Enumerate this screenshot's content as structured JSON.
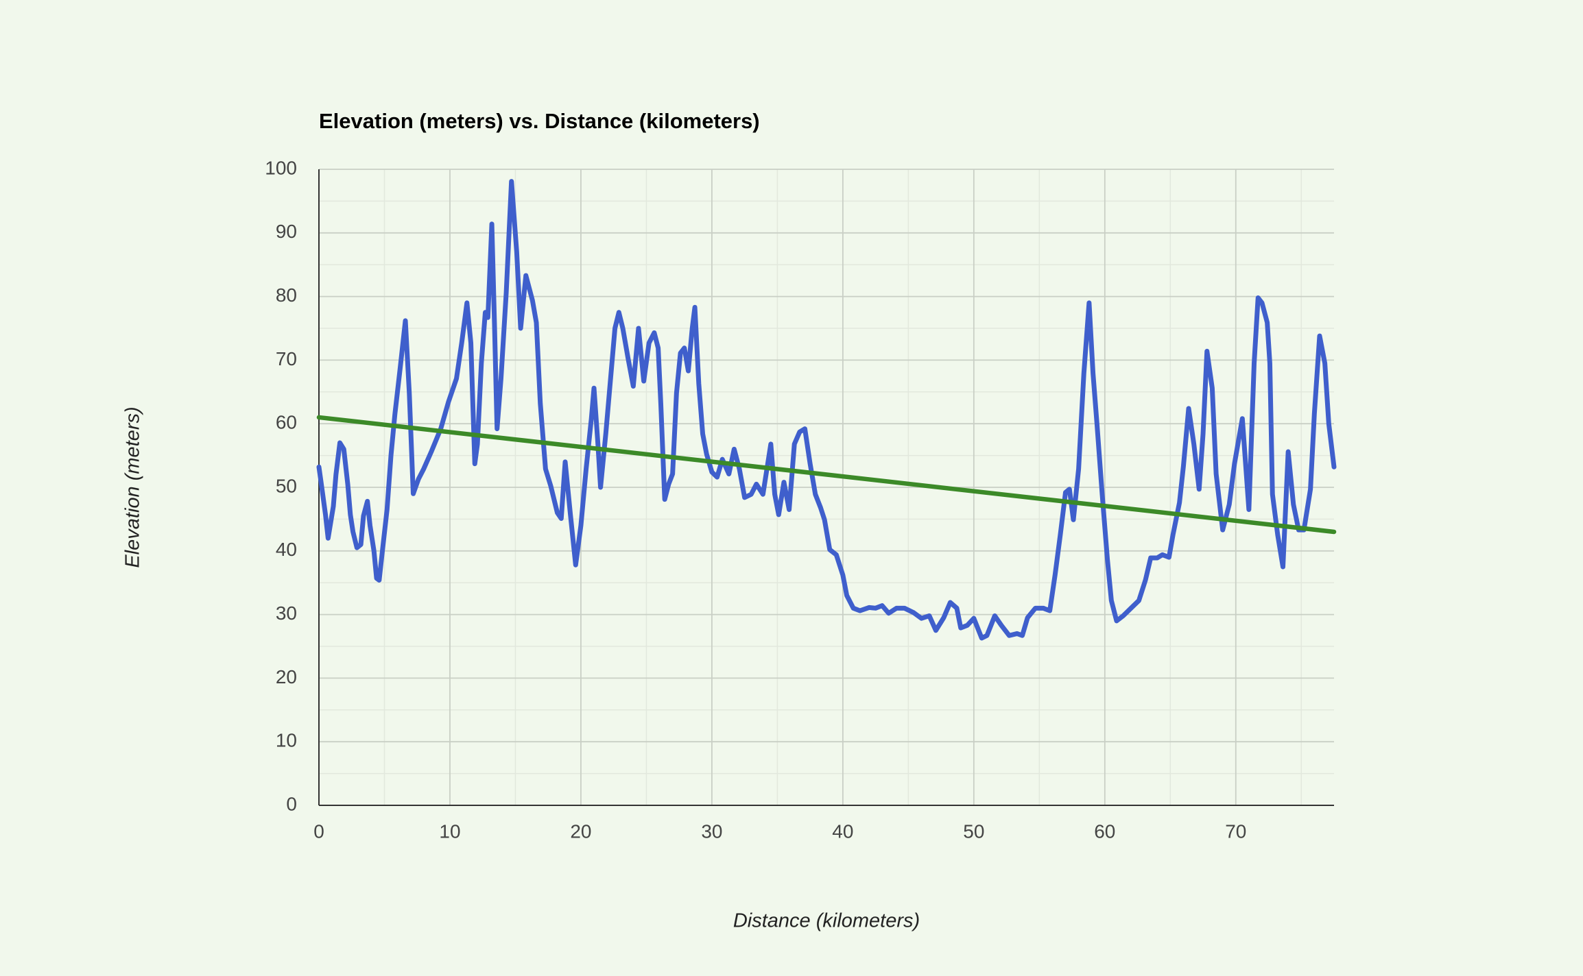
{
  "chart_data": {
    "type": "line",
    "title": "Elevation (meters) vs. Distance (kilometers)",
    "x_label": "Distance (kilometers)",
    "y_label": "Elevation (meters)",
    "xlim": [
      0,
      77.5
    ],
    "ylim": [
      0,
      100
    ],
    "xticks": [
      0,
      10,
      20,
      30,
      40,
      50,
      60,
      70
    ],
    "yticks": [
      0,
      10,
      20,
      30,
      40,
      50,
      60,
      70,
      80,
      90,
      100
    ],
    "grid": true,
    "minor_grid": true,
    "series": [
      {
        "color": "#3f5fcc",
        "x": [
          0,
          0.15,
          0.5,
          0.7,
          1.1,
          1.3,
          1.6,
          1.9,
          2.2,
          2.4,
          2.6,
          2.9,
          3.2,
          3.4,
          3.7,
          3.9,
          4.2,
          4.4,
          4.6,
          4.9,
          5.2,
          5.5,
          5.8,
          6.2,
          6.6,
          6.9,
          7.2,
          7.6,
          8.0,
          8.6,
          9.3,
          9.9,
          10.5,
          10.9,
          11.3,
          11.6,
          11.9,
          12.1,
          12.4,
          12.7,
          12.9,
          13.2,
          13.4,
          13.6,
          13.9,
          14.3,
          14.7,
          15.1,
          15.4,
          15.8,
          16.3,
          16.6,
          16.9,
          17.3,
          17.7,
          18.2,
          18.5,
          18.8,
          19.2,
          19.6,
          20,
          20.4,
          20.8,
          21.0,
          21.3,
          21.5,
          21.9,
          22.3,
          22.6,
          22.9,
          23.2,
          23.6,
          24.0,
          24.4,
          24.8,
          25.2,
          25.6,
          25.9,
          26.1,
          26.4,
          26.7,
          27,
          27.3,
          27.6,
          27.9,
          28.2,
          28.5,
          28.7,
          29.0,
          29.3,
          29.6,
          30,
          30.4,
          30.8,
          31.3,
          31.7,
          32.1,
          32.5,
          33,
          33.4,
          33.9,
          34.5,
          34.8,
          35.1,
          35.5,
          35.9,
          36.3,
          36.7,
          37.1,
          37.5,
          37.9,
          38.3,
          38.6,
          39,
          39.5,
          40,
          40.3,
          40.8,
          41.3,
          42,
          42.5,
          43,
          43.5,
          44.1,
          44.7,
          45.4,
          46,
          46.6,
          47.1,
          47.7,
          48.2,
          48.7,
          49,
          49.5,
          50,
          50.6,
          51,
          51.6,
          52.1,
          52.7,
          53.3,
          53.7,
          54.1,
          54.7,
          55.3,
          55.8,
          56.2,
          56.6,
          57,
          57.3,
          57.6,
          58,
          58.4,
          58.8,
          59.1,
          59.4,
          59.8,
          60.2,
          60.5,
          60.9,
          61.4,
          62,
          62.6,
          63.1,
          63.5,
          64,
          64.4,
          64.9,
          65.2,
          65.7,
          66,
          66.4,
          66.8,
          67.2,
          67.5,
          67.8,
          68.2,
          68.5,
          69,
          69.5,
          69.9,
          70.5,
          71,
          71.4,
          71.7,
          72,
          72.4,
          72.6,
          72.8,
          73.2,
          73.6,
          74,
          74.4,
          74.8,
          75.2,
          75.7,
          76,
          76.4,
          76.8,
          77.1,
          77.5
        ],
        "values": [
          53.2,
          51,
          45.7,
          42,
          47,
          52,
          57,
          56,
          50.5,
          45.7,
          43,
          40.5,
          41,
          45.5,
          47.8,
          44,
          40,
          35.7,
          35.4,
          41,
          46.5,
          55,
          61.5,
          68.7,
          76.2,
          64.8,
          49,
          51.3,
          52.9,
          55.7,
          59.2,
          63.5,
          67.1,
          72.7,
          79,
          72.7,
          53.7,
          56.8,
          69.5,
          77.5,
          76.7,
          91.4,
          75.9,
          59.2,
          67.1,
          80.6,
          98.1,
          87,
          75,
          83.3,
          79.4,
          75.9,
          63.2,
          52.9,
          50.2,
          46,
          45.1,
          54,
          45.7,
          37.8,
          44,
          52.9,
          60.8,
          65.6,
          56.8,
          50,
          58.4,
          67.9,
          75,
          77.5,
          75,
          70.3,
          65.9,
          75,
          66.7,
          72.7,
          74.3,
          71.9,
          63.2,
          48.1,
          50.5,
          52.1,
          64.8,
          71.1,
          71.9,
          68.3,
          75,
          78.3,
          66.3,
          58.4,
          55.2,
          52.4,
          51.6,
          54.4,
          52.1,
          56,
          52.9,
          48.4,
          48.9,
          50.5,
          48.9,
          56.8,
          48.9,
          45.7,
          50.8,
          46.5,
          56.8,
          58.7,
          59.2,
          53.7,
          48.9,
          46.8,
          44.9,
          40.2,
          39.4,
          36.2,
          33,
          31,
          30.6,
          31.1,
          31,
          31.4,
          30.2,
          31,
          31,
          30.3,
          29.4,
          29.8,
          27.5,
          29.5,
          31.9,
          31,
          27.9,
          28.3,
          29.4,
          26.3,
          26.7,
          29.8,
          28.3,
          26.7,
          27,
          26.7,
          29.5,
          31,
          31,
          30.6,
          36.2,
          42.5,
          49.2,
          49.7,
          44.9,
          52.9,
          67.9,
          79,
          67.9,
          60,
          48.9,
          38.6,
          32.2,
          29,
          29.8,
          31,
          32.2,
          35.4,
          38.9,
          38.9,
          39.4,
          39,
          42.5,
          47.6,
          53.3,
          62.4,
          56.8,
          49.7,
          58.4,
          71.4,
          65.6,
          52.1,
          43.3,
          47.3,
          53.7,
          60.8,
          46.5,
          69.5,
          79.8,
          79,
          75.9,
          69.5,
          48.9,
          42.5,
          37.5,
          55.6,
          47.3,
          43.3,
          43.3,
          49.7,
          61.6,
          73.8,
          69.5,
          60,
          53.2
        ]
      },
      {
        "color": "#3c8a28",
        "x": [
          0,
          77.5
        ],
        "values": [
          61,
          43
        ]
      }
    ]
  }
}
